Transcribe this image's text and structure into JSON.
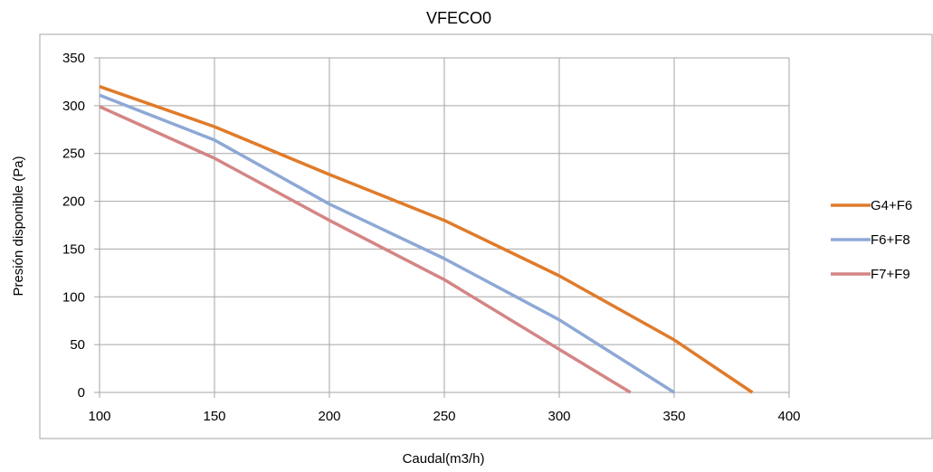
{
  "chart_data": {
    "type": "line",
    "title": "VFECO0",
    "xlabel": "Caudal(m3/h)",
    "ylabel": "Presión disponible (Pa)",
    "xlim": [
      100,
      400
    ],
    "ylim": [
      0,
      350
    ],
    "x_ticks": [
      100,
      150,
      200,
      250,
      300,
      350,
      400
    ],
    "y_ticks": [
      0,
      50,
      100,
      150,
      200,
      250,
      300,
      350
    ],
    "grid": true,
    "legend_position": "right",
    "series": [
      {
        "name": "G4+F6",
        "color": "#E07B2A",
        "points": [
          [
            100,
            320
          ],
          [
            150,
            278
          ],
          [
            200,
            228
          ],
          [
            250,
            180
          ],
          [
            300,
            122
          ],
          [
            350,
            55
          ],
          [
            384,
            0
          ]
        ]
      },
      {
        "name": "F6+F8",
        "color": "#8EA8D6",
        "points": [
          [
            100,
            311
          ],
          [
            150,
            264
          ],
          [
            200,
            197
          ],
          [
            250,
            140
          ],
          [
            300,
            76
          ],
          [
            350,
            0
          ]
        ]
      },
      {
        "name": "F7+F9",
        "color": "#D48585",
        "points": [
          [
            100,
            299
          ],
          [
            150,
            245
          ],
          [
            200,
            180
          ],
          [
            250,
            118
          ],
          [
            300,
            45
          ],
          [
            331,
            0
          ]
        ]
      }
    ]
  }
}
